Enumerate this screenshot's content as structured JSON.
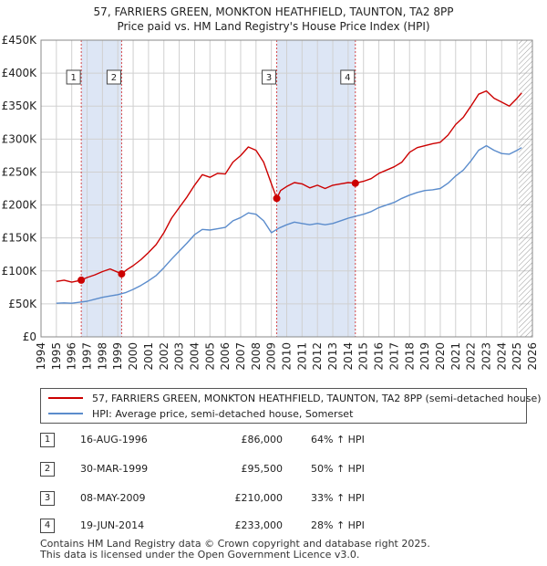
{
  "title_line1": "57, FARRIERS GREEN, MONKTON HEATHFIELD, TAUNTON, TA2 8PP",
  "title_line2": "Price paid vs. HM Land Registry's House Price Index (HPI)",
  "colors": {
    "property": "#cc0000",
    "hpi": "#5b8ccc",
    "shade": "#dde6f5",
    "grid": "#d0d0d0",
    "marker": "#cc0000"
  },
  "chart_data": {
    "type": "line",
    "title": "Price paid vs. HM Land Registry's House Price Index (HPI)",
    "xlim": [
      1994,
      2026
    ],
    "ylim": [
      0,
      450000
    ],
    "x_ticks": [
      "1994",
      "1995",
      "1996",
      "1997",
      "1998",
      "1999",
      "2000",
      "2001",
      "2002",
      "2003",
      "2004",
      "2005",
      "2006",
      "2007",
      "2008",
      "2009",
      "2010",
      "2011",
      "2012",
      "2013",
      "2014",
      "2015",
      "2016",
      "2017",
      "2018",
      "2019",
      "2020",
      "2021",
      "2022",
      "2023",
      "2024",
      "2025",
      "2026"
    ],
    "y_ticks": [
      {
        "value": 0,
        "label": "£0"
      },
      {
        "value": 50000,
        "label": "£50K"
      },
      {
        "value": 100000,
        "label": "£100K"
      },
      {
        "value": 150000,
        "label": "£150K"
      },
      {
        "value": 200000,
        "label": "£200K"
      },
      {
        "value": 250000,
        "label": "£250K"
      },
      {
        "value": 300000,
        "label": "£300K"
      },
      {
        "value": 350000,
        "label": "£350K"
      },
      {
        "value": 400000,
        "label": "£400K"
      },
      {
        "value": 450000,
        "label": "£450K"
      }
    ],
    "shaded_ranges": [
      [
        1996.62,
        1999.25
      ],
      [
        2009.35,
        2014.47
      ]
    ],
    "future_hatch_from": 2025.1,
    "series": [
      {
        "name": "57, FARRIERS GREEN, MONKTON HEATHFIELD, TAUNTON, TA2 8PP (semi-detached house)",
        "color": "#cc0000",
        "points": [
          [
            1995,
            84000
          ],
          [
            1995.5,
            86000
          ],
          [
            1996,
            83000
          ],
          [
            1996.62,
            86000
          ],
          [
            1997,
            90000
          ],
          [
            1997.5,
            94000
          ],
          [
            1998,
            99000
          ],
          [
            1998.5,
            103000
          ],
          [
            1999,
            98000
          ],
          [
            1999.25,
            95500
          ],
          [
            1999.6,
            102000
          ],
          [
            2000,
            108000
          ],
          [
            2000.5,
            117000
          ],
          [
            2001,
            128000
          ],
          [
            2001.5,
            140000
          ],
          [
            2002,
            158000
          ],
          [
            2002.5,
            180000
          ],
          [
            2003,
            196000
          ],
          [
            2003.5,
            212000
          ],
          [
            2004,
            230000
          ],
          [
            2004.5,
            246000
          ],
          [
            2005,
            242000
          ],
          [
            2005.5,
            248000
          ],
          [
            2006,
            247000
          ],
          [
            2006.5,
            265000
          ],
          [
            2007,
            275000
          ],
          [
            2007.5,
            288000
          ],
          [
            2008,
            283000
          ],
          [
            2008.5,
            265000
          ],
          [
            2009,
            232000
          ],
          [
            2009.35,
            210000
          ],
          [
            2009.6,
            222000
          ],
          [
            2010,
            228000
          ],
          [
            2010.5,
            234000
          ],
          [
            2011,
            232000
          ],
          [
            2011.5,
            226000
          ],
          [
            2012,
            230000
          ],
          [
            2012.5,
            225000
          ],
          [
            2013,
            230000
          ],
          [
            2013.5,
            232000
          ],
          [
            2014,
            234000
          ],
          [
            2014.47,
            233000
          ],
          [
            2015,
            236000
          ],
          [
            2015.5,
            240000
          ],
          [
            2016,
            248000
          ],
          [
            2016.5,
            253000
          ],
          [
            2017,
            258000
          ],
          [
            2017.5,
            265000
          ],
          [
            2018,
            280000
          ],
          [
            2018.5,
            287000
          ],
          [
            2019,
            290000
          ],
          [
            2019.5,
            293000
          ],
          [
            2020,
            295000
          ],
          [
            2020.5,
            306000
          ],
          [
            2021,
            322000
          ],
          [
            2021.5,
            333000
          ],
          [
            2022,
            350000
          ],
          [
            2022.5,
            368000
          ],
          [
            2023,
            373000
          ],
          [
            2023.5,
            362000
          ],
          [
            2024,
            356000
          ],
          [
            2024.5,
            350000
          ],
          [
            2025,
            362000
          ],
          [
            2025.3,
            370000
          ]
        ]
      },
      {
        "name": "HPI: Average price, semi-detached house, Somerset",
        "color": "#5b8ccc",
        "points": [
          [
            1995,
            51000
          ],
          [
            1995.5,
            51500
          ],
          [
            1996,
            51000
          ],
          [
            1996.5,
            52500
          ],
          [
            1997,
            54000
          ],
          [
            1997.5,
            57000
          ],
          [
            1998,
            60000
          ],
          [
            1998.5,
            62000
          ],
          [
            1999,
            64000
          ],
          [
            1999.5,
            67000
          ],
          [
            2000,
            72000
          ],
          [
            2000.5,
            78000
          ],
          [
            2001,
            85000
          ],
          [
            2001.5,
            93000
          ],
          [
            2002,
            105000
          ],
          [
            2002.5,
            118000
          ],
          [
            2003,
            130000
          ],
          [
            2003.5,
            142000
          ],
          [
            2004,
            155000
          ],
          [
            2004.5,
            163000
          ],
          [
            2005,
            162000
          ],
          [
            2005.5,
            164000
          ],
          [
            2006,
            166000
          ],
          [
            2006.5,
            176000
          ],
          [
            2007,
            181000
          ],
          [
            2007.5,
            188000
          ],
          [
            2008,
            186000
          ],
          [
            2008.5,
            176000
          ],
          [
            2009,
            158000
          ],
          [
            2009.5,
            165000
          ],
          [
            2010,
            170000
          ],
          [
            2010.5,
            174000
          ],
          [
            2011,
            172000
          ],
          [
            2011.5,
            170000
          ],
          [
            2012,
            172000
          ],
          [
            2012.5,
            170000
          ],
          [
            2013,
            172000
          ],
          [
            2013.5,
            176000
          ],
          [
            2014,
            180000
          ],
          [
            2014.5,
            183000
          ],
          [
            2015,
            186000
          ],
          [
            2015.5,
            190000
          ],
          [
            2016,
            196000
          ],
          [
            2016.5,
            200000
          ],
          [
            2017,
            204000
          ],
          [
            2017.5,
            210000
          ],
          [
            2018,
            215000
          ],
          [
            2018.5,
            219000
          ],
          [
            2019,
            222000
          ],
          [
            2019.5,
            223000
          ],
          [
            2020,
            225000
          ],
          [
            2020.5,
            233000
          ],
          [
            2021,
            244000
          ],
          [
            2021.5,
            253000
          ],
          [
            2022,
            267000
          ],
          [
            2022.5,
            283000
          ],
          [
            2023,
            290000
          ],
          [
            2023.5,
            283000
          ],
          [
            2024,
            278000
          ],
          [
            2024.5,
            277000
          ],
          [
            2025,
            283000
          ],
          [
            2025.3,
            287000
          ]
        ]
      }
    ],
    "sale_markers": [
      {
        "num": "1",
        "x": 1996.62,
        "y": 86000
      },
      {
        "num": "2",
        "x": 1999.25,
        "y": 95500
      },
      {
        "num": "3",
        "x": 2009.35,
        "y": 210000
      },
      {
        "num": "4",
        "x": 2014.47,
        "y": 233000
      }
    ]
  },
  "legend": {
    "property": "57, FARRIERS GREEN, MONKTON HEATHFIELD, TAUNTON, TA2 8PP (semi-detached house)",
    "hpi": "HPI: Average price, semi-detached house, Somerset"
  },
  "sales": [
    {
      "num": "1",
      "date": "16-AUG-1996",
      "price": "£86,000",
      "hpi": "64% ↑ HPI"
    },
    {
      "num": "2",
      "date": "30-MAR-1999",
      "price": "£95,500",
      "hpi": "50% ↑ HPI"
    },
    {
      "num": "3",
      "date": "08-MAY-2009",
      "price": "£210,000",
      "hpi": "33% ↑ HPI"
    },
    {
      "num": "4",
      "date": "19-JUN-2014",
      "price": "£233,000",
      "hpi": "28% ↑ HPI"
    }
  ],
  "footer_line1": "Contains HM Land Registry data © Crown copyright and database right 2025.",
  "footer_line2": "This data is licensed under the Open Government Licence v3.0."
}
